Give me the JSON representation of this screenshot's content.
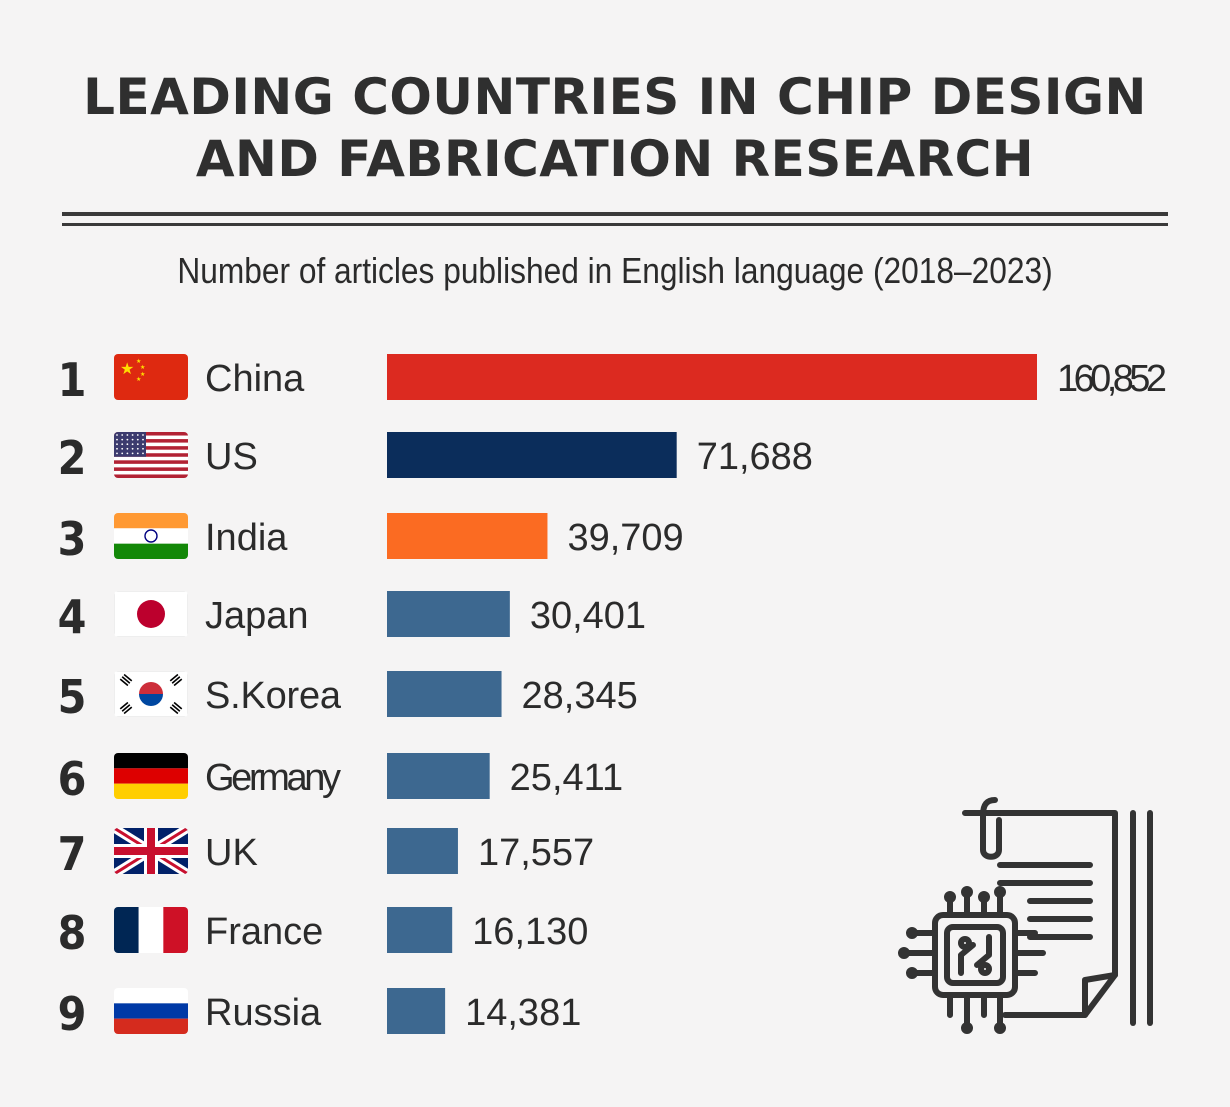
{
  "title_line1": "LEADING COUNTRIES IN CHIP DESIGN",
  "title_line2": "AND FABRICATION RESEARCH",
  "subtitle": "Number of articles published in English language (2018–2023)",
  "colors": {
    "china": "#dc2a20",
    "us": "#0b2d5b",
    "india": "#fb6b22",
    "default": "#3d6890"
  },
  "icons": [
    "china-flag-icon",
    "us-flag-icon",
    "india-flag-icon",
    "japan-flag-icon",
    "south-korea-flag-icon",
    "germany-flag-icon",
    "uk-flag-icon",
    "france-flag-icon",
    "russia-flag-icon",
    "chip-document-icon"
  ],
  "chart_data": {
    "type": "bar",
    "orientation": "horizontal",
    "title": "LEADING COUNTRIES IN CHIP DESIGN AND FABRICATION RESEARCH",
    "subtitle": "Number of articles published in English language (2018–2023)",
    "ranks": [
      "1",
      "2",
      "3",
      "4",
      "5",
      "6",
      "7",
      "8",
      "9"
    ],
    "categories": [
      "China",
      "US",
      "India",
      "Japan",
      "S.Korea",
      "Germany",
      "UK",
      "France",
      "Russia"
    ],
    "values": [
      160852,
      71688,
      39709,
      30401,
      28345,
      25411,
      17557,
      16130,
      14381
    ],
    "value_labels": [
      "160,852",
      "71,688",
      "39,709",
      "30,401",
      "28,345",
      "25,411",
      "17,557",
      "16,130",
      "14,381"
    ],
    "grid": false,
    "legend": "none"
  }
}
